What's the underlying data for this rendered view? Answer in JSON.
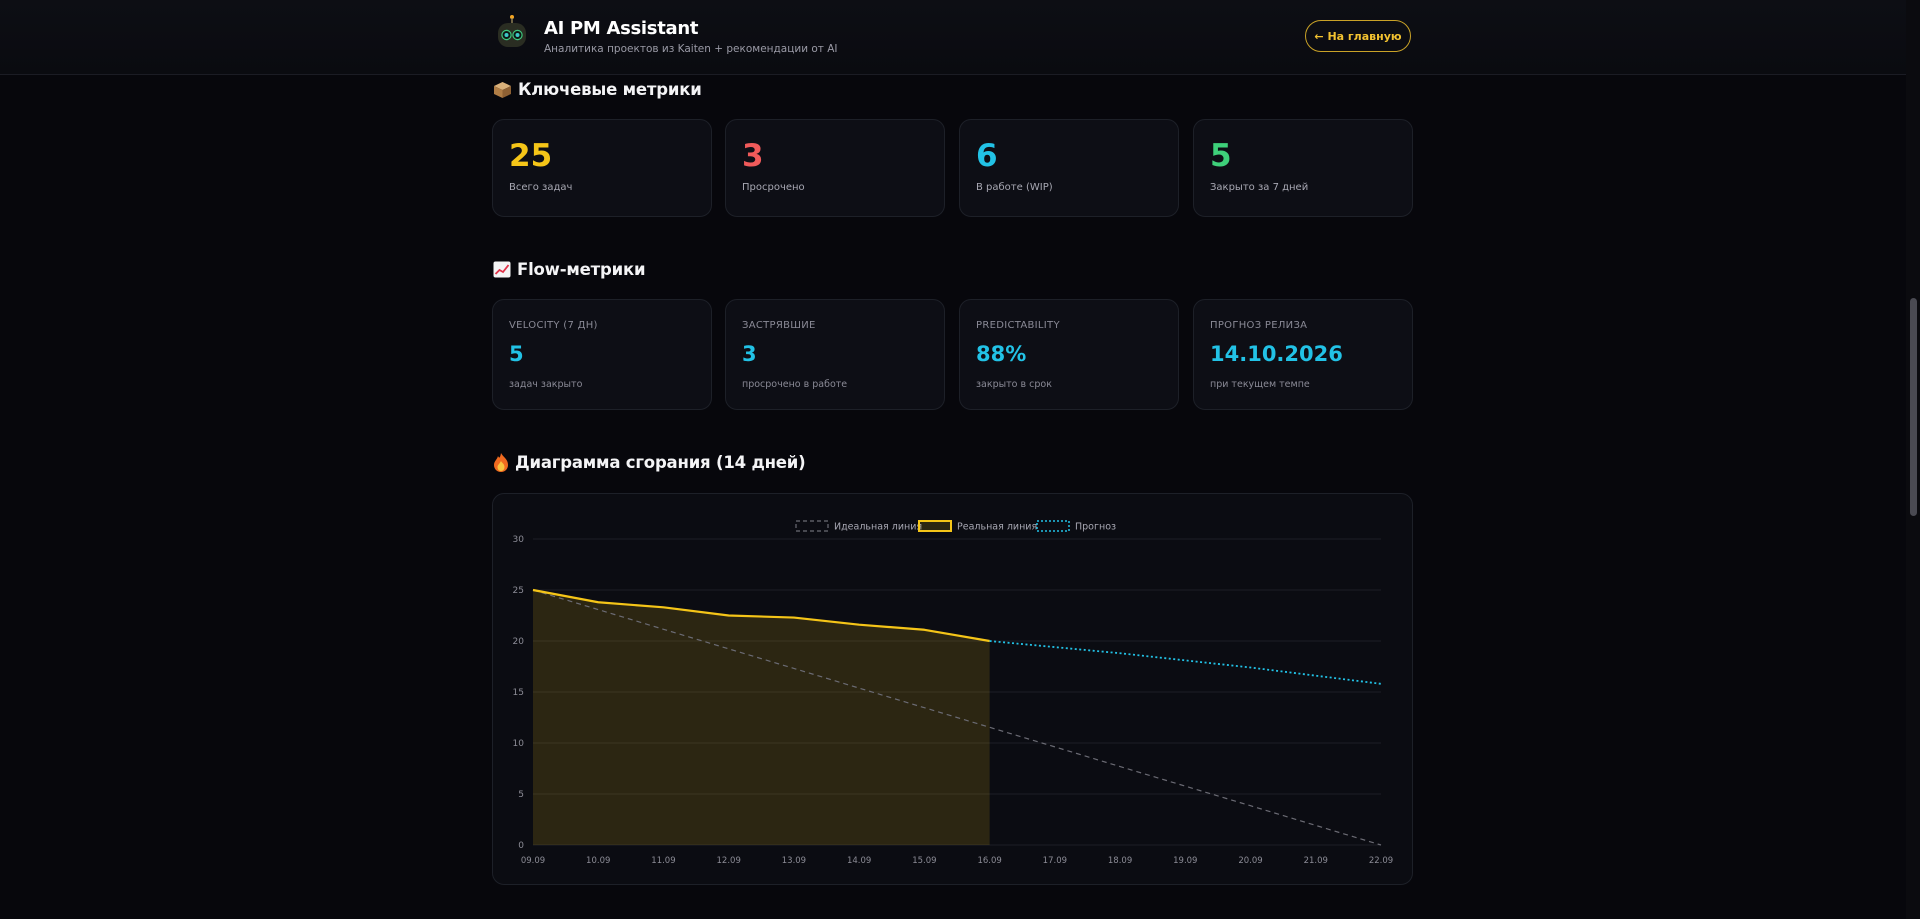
{
  "header": {
    "title": "AI PM Assistant",
    "subtitle": "Аналитика проектов из Kaiten + рекомендации от AI",
    "home_button": "← На главную"
  },
  "metrics_section": {
    "icon": "box-icon",
    "title": "Ключевые метрики",
    "cards": [
      {
        "value": "25",
        "label": "Всего задач",
        "color": "#f5c518"
      },
      {
        "value": "3",
        "label": "Просрочено",
        "color": "#f05a5a"
      },
      {
        "value": "6",
        "label": "В работе (WIP)",
        "color": "#22c2e6"
      },
      {
        "value": "5",
        "label": "Закрыто за 7 дней",
        "color": "#3ed07a"
      }
    ]
  },
  "flow_section": {
    "icon": "chart-up-icon",
    "title": "Flow-метрики",
    "cards": [
      {
        "label": "Velocity (7 дн)",
        "value": "5",
        "sub": "задач закрыто"
      },
      {
        "label": "Застрявшие",
        "value": "3",
        "sub": "просрочено в работе"
      },
      {
        "label": "Predictability",
        "value": "88%",
        "sub": "закрыто в срок"
      },
      {
        "label": "Прогноз релиза",
        "value": "14.10.2026",
        "sub": "при текущем темпе"
      }
    ]
  },
  "burndown_section": {
    "icon": "fire-icon",
    "title": "Диаграмма сгорания (14 дней)"
  },
  "chart_data": {
    "type": "line",
    "categories": [
      "09.09",
      "10.09",
      "11.09",
      "12.09",
      "13.09",
      "14.09",
      "15.09",
      "16.09",
      "17.09",
      "18.09",
      "19.09",
      "20.09",
      "21.09",
      "22.09"
    ],
    "ylim": [
      0,
      30
    ],
    "yticks": [
      0,
      5,
      10,
      15,
      20,
      25,
      30
    ],
    "grid": true,
    "legend_position": "top",
    "series": [
      {
        "name": "Идеальная линия",
        "style": "dashed",
        "color": "#6b6b74",
        "values": [
          25,
          23.08,
          21.15,
          19.23,
          17.31,
          15.38,
          13.46,
          11.54,
          9.62,
          7.69,
          5.77,
          3.85,
          1.92,
          0
        ]
      },
      {
        "name": "Реальная линия",
        "style": "solid",
        "color": "#f5c518",
        "fill": true,
        "values": [
          25,
          23.8,
          23.3,
          22.5,
          22.3,
          21.6,
          21.1,
          20,
          null,
          null,
          null,
          null,
          null,
          null
        ]
      },
      {
        "name": "Прогноз",
        "style": "dotted",
        "color": "#22c2e6",
        "values": [
          null,
          null,
          null,
          null,
          null,
          null,
          null,
          20,
          19.4,
          18.8,
          18.1,
          17.4,
          16.6,
          15.8
        ]
      }
    ]
  }
}
